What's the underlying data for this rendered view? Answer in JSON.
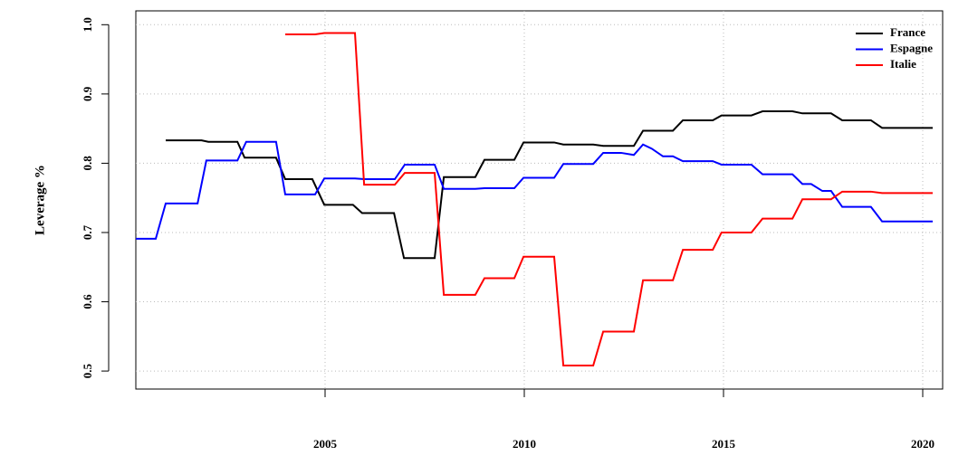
{
  "chart_data": {
    "type": "line",
    "ylabel": "Leverage %",
    "xlim": [
      2000.25,
      2020.5
    ],
    "ylim": [
      0.474,
      1.02
    ],
    "xticks": [
      2005,
      2010,
      2015,
      2020
    ],
    "yticks": [
      0.5,
      0.6,
      0.7,
      0.8,
      0.9,
      {
        "value": 1.0,
        "label": "1.0"
      }
    ],
    "grid": true,
    "legend": "top-right",
    "series": [
      {
        "name": "France",
        "color": "#000000",
        "x": [
          2001.0,
          2001.9,
          2002.07,
          2002.8,
          2002.98,
          2003.77,
          2004.0,
          2004.68,
          2004.98,
          2005.7,
          2005.93,
          2006.73,
          2006.98,
          2007.75,
          2007.98,
          2008.77,
          2009.0,
          2009.75,
          2009.98,
          2010.75,
          2010.98,
          2011.73,
          2011.98,
          2012.75,
          2012.98,
          2013.73,
          2013.98,
          2014.73,
          2014.95,
          2015.7,
          2015.98,
          2016.73,
          2016.98,
          2017.7,
          2017.98,
          2018.7,
          2018.98,
          2020.25
        ],
        "values": [
          0.833,
          0.833,
          0.831,
          0.831,
          0.808,
          0.808,
          0.777,
          0.777,
          0.74,
          0.74,
          0.728,
          0.728,
          0.663,
          0.663,
          0.78,
          0.78,
          0.805,
          0.805,
          0.83,
          0.83,
          0.827,
          0.827,
          0.825,
          0.825,
          0.847,
          0.847,
          0.862,
          0.862,
          0.869,
          0.869,
          0.875,
          0.875,
          0.872,
          0.872,
          0.862,
          0.862,
          0.851,
          0.851
        ]
      },
      {
        "name": "Espagne",
        "color": "#0000ff",
        "x": [
          2000.25,
          2000.75,
          2001.0,
          2001.8,
          2002.02,
          2002.8,
          2003.02,
          2003.77,
          2004.0,
          2004.75,
          2004.98,
          2005.75,
          2005.98,
          2006.75,
          2007.0,
          2007.75,
          2007.98,
          2008.77,
          2009.0,
          2009.75,
          2009.98,
          2010.75,
          2010.98,
          2011.73,
          2011.98,
          2012.43,
          2012.75,
          2012.98,
          2013.2,
          2013.48,
          2013.73,
          2013.98,
          2014.73,
          2014.95,
          2015.7,
          2015.98,
          2016.73,
          2016.98,
          2017.2,
          2017.48,
          2017.7,
          2017.98,
          2018.7,
          2018.98,
          2020.25
        ],
        "values": [
          0.691,
          0.691,
          0.742,
          0.742,
          0.804,
          0.804,
          0.831,
          0.831,
          0.755,
          0.755,
          0.778,
          0.778,
          0.777,
          0.777,
          0.798,
          0.798,
          0.763,
          0.763,
          0.764,
          0.764,
          0.779,
          0.779,
          0.799,
          0.799,
          0.815,
          0.815,
          0.812,
          0.827,
          0.821,
          0.81,
          0.81,
          0.803,
          0.803,
          0.798,
          0.798,
          0.784,
          0.784,
          0.77,
          0.77,
          0.76,
          0.76,
          0.737,
          0.737,
          0.716,
          0.716
        ]
      },
      {
        "name": "Italie",
        "color": "#ff0000",
        "x": [
          2004.0,
          2004.75,
          2004.98,
          2005.75,
          2005.98,
          2006.75,
          2007.0,
          2007.75,
          2007.98,
          2008.77,
          2009.0,
          2009.75,
          2009.98,
          2010.75,
          2010.98,
          2011.73,
          2011.98,
          2012.75,
          2012.98,
          2013.73,
          2013.98,
          2014.73,
          2014.95,
          2015.7,
          2015.98,
          2016.73,
          2016.98,
          2017.7,
          2017.98,
          2018.7,
          2018.98,
          2020.25
        ],
        "values": [
          0.986,
          0.986,
          0.988,
          0.988,
          0.769,
          0.769,
          0.786,
          0.786,
          0.61,
          0.61,
          0.634,
          0.634,
          0.665,
          0.665,
          0.508,
          0.508,
          0.557,
          0.557,
          0.631,
          0.631,
          0.675,
          0.675,
          0.7,
          0.7,
          0.72,
          0.72,
          0.748,
          0.748,
          0.759,
          0.759,
          0.757,
          0.757
        ]
      }
    ]
  }
}
